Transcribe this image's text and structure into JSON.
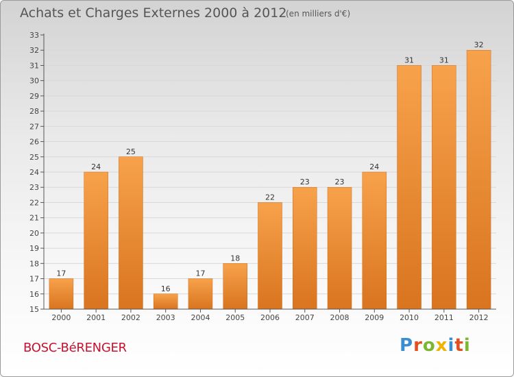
{
  "header": {
    "title": "Achats et Charges Externes 2000 à 2012",
    "subtitle": "(en milliers d'€)"
  },
  "footer": {
    "commune": "BOSC-BéRENGER",
    "logo_text": "Proxiti"
  },
  "colors": {
    "bar_light": "#f7a24b",
    "bar_dark": "#d9741f",
    "grid": "#d8d8d8",
    "axis": "#555555",
    "commune": "#c8102e"
  },
  "chart_data": {
    "type": "bar",
    "title": "Achats et Charges Externes 2000 à 2012",
    "subtitle": "(en milliers d'€)",
    "xlabel": "",
    "ylabel": "",
    "categories": [
      "2000",
      "2001",
      "2002",
      "2003",
      "2004",
      "2005",
      "2006",
      "2007",
      "2008",
      "2009",
      "2010",
      "2011",
      "2012"
    ],
    "values": [
      17,
      24,
      25,
      16,
      17,
      18,
      22,
      23,
      23,
      24,
      31,
      31,
      32
    ],
    "ylim": [
      15,
      33
    ],
    "yticks": [
      15,
      16,
      17,
      18,
      19,
      20,
      21,
      22,
      23,
      24,
      25,
      26,
      27,
      28,
      29,
      30,
      31,
      32,
      33
    ],
    "grid": true,
    "data_labels": true
  }
}
